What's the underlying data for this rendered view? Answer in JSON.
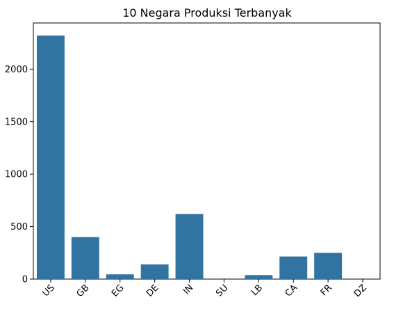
{
  "chart_data": {
    "type": "bar",
    "title": "10 Negara Produksi Terbanyak",
    "xlabel": "",
    "ylabel": "",
    "categories": [
      "US",
      "GB",
      "EG",
      "DE",
      "IN",
      "SU",
      "LB",
      "CA",
      "FR",
      "DZ"
    ],
    "values": [
      2320,
      400,
      45,
      140,
      620,
      0,
      38,
      215,
      250,
      0
    ],
    "ylim": [
      0,
      2440
    ],
    "yticks": [
      0,
      500,
      1000,
      1500,
      2000
    ],
    "grid": false,
    "bar_color": "#3274a1"
  }
}
